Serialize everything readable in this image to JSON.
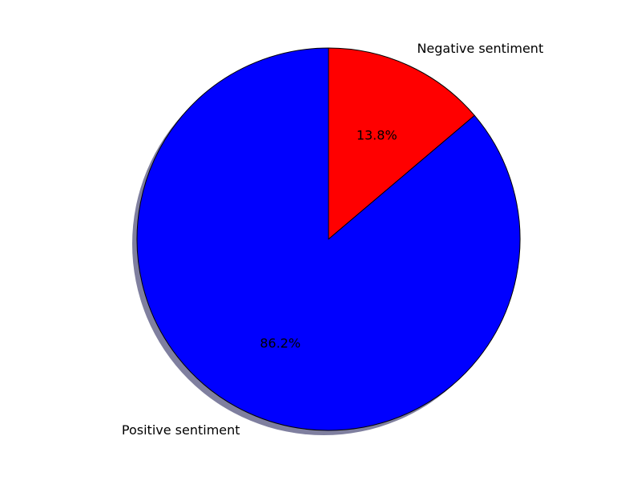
{
  "chart_data": {
    "type": "pie",
    "title": "",
    "start_angle_deg": 90,
    "direction": "clockwise",
    "shadow": true,
    "slices": [
      {
        "label": "Negative sentiment",
        "pct_label": "13.8%",
        "value": 13.8,
        "color": "#ff0000"
      },
      {
        "label": "Positive sentiment",
        "pct_label": "86.2%",
        "value": 86.2,
        "color": "#0000ff"
      }
    ],
    "edge_color": "#000000",
    "shadow_color": "#7f7f9f"
  }
}
